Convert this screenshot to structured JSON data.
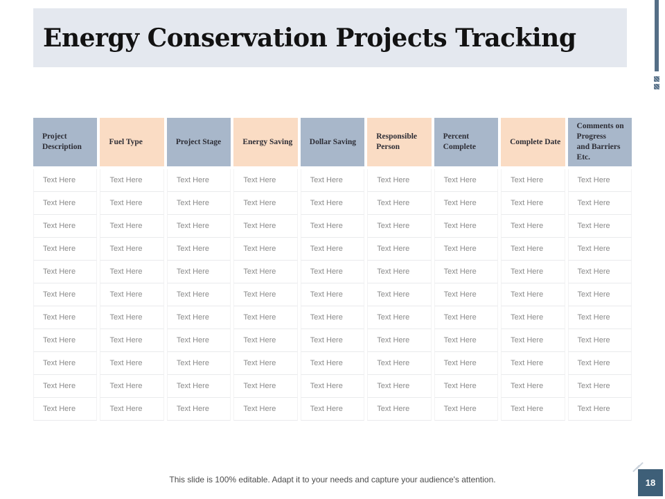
{
  "slide": {
    "title": "Energy Conservation Projects Tracking",
    "footer_note": "This slide is 100% editable. Adapt it to your needs and capture your audience's attention.",
    "page_number": "18"
  },
  "table": {
    "columns": [
      {
        "label": "Project\nDescription",
        "shade": "blue"
      },
      {
        "label": "Fuel Type",
        "shade": "peach"
      },
      {
        "label": "Project Stage",
        "shade": "blue"
      },
      {
        "label": "Energy Saving",
        "shade": "peach"
      },
      {
        "label": "Dollar Saving",
        "shade": "blue"
      },
      {
        "label": "Responsible\nPerson",
        "shade": "peach"
      },
      {
        "label": "Percent\nComplete",
        "shade": "blue"
      },
      {
        "label": "Complete Date",
        "shade": "peach"
      },
      {
        "label": "Comments on\nProgress\nand Barriers\nEtc.",
        "shade": "blue"
      }
    ],
    "rows": [
      [
        "Text Here",
        "Text Here",
        "Text Here",
        "Text Here",
        "Text Here",
        "Text Here",
        "Text Here",
        "Text Here",
        "Text Here"
      ],
      [
        "Text Here",
        "Text Here",
        "Text Here",
        "Text Here",
        "Text Here",
        "Text Here",
        "Text Here",
        "Text Here",
        "Text Here"
      ],
      [
        "Text Here",
        "Text Here",
        "Text Here",
        "Text Here",
        "Text Here",
        "Text Here",
        "Text Here",
        "Text Here",
        "Text Here"
      ],
      [
        "Text Here",
        "Text Here",
        "Text Here",
        "Text Here",
        "Text Here",
        "Text Here",
        "Text Here",
        "Text Here",
        "Text Here"
      ],
      [
        "Text Here",
        "Text Here",
        "Text Here",
        "Text Here",
        "Text Here",
        "Text Here",
        "Text Here",
        "Text Here",
        "Text Here"
      ],
      [
        "Text Here",
        "Text Here",
        "Text Here",
        "Text Here",
        "Text Here",
        "Text Here",
        "Text Here",
        "Text Here",
        "Text Here"
      ],
      [
        "Text Here",
        "Text Here",
        "Text Here",
        "Text Here",
        "Text Here",
        "Text Here",
        "Text Here",
        "Text Here",
        "Text Here"
      ],
      [
        "Text Here",
        "Text Here",
        "Text Here",
        "Text Here",
        "Text Here",
        "Text Here",
        "Text Here",
        "Text Here",
        "Text Here"
      ],
      [
        "Text Here",
        "Text Here",
        "Text Here",
        "Text Here",
        "Text Here",
        "Text Here",
        "Text Here",
        "Text Here",
        "Text Here"
      ],
      [
        "Text Here",
        "Text Here",
        "Text Here",
        "Text Here",
        "Text Here",
        "Text Here",
        "Text Here",
        "Text Here",
        "Text Here"
      ],
      [
        "Text Here",
        "Text Here",
        "Text Here",
        "Text Here",
        "Text Here",
        "Text Here",
        "Text Here",
        "Text Here",
        "Text Here"
      ]
    ]
  },
  "colors": {
    "header_blue": "#a8b7ca",
    "header_peach": "#fadcc4",
    "title_band_bg": "#e4e8ef",
    "accent_bar": "#546e86",
    "page_badge_bg": "#3e5f78",
    "body_text": "#8a8a8a"
  }
}
